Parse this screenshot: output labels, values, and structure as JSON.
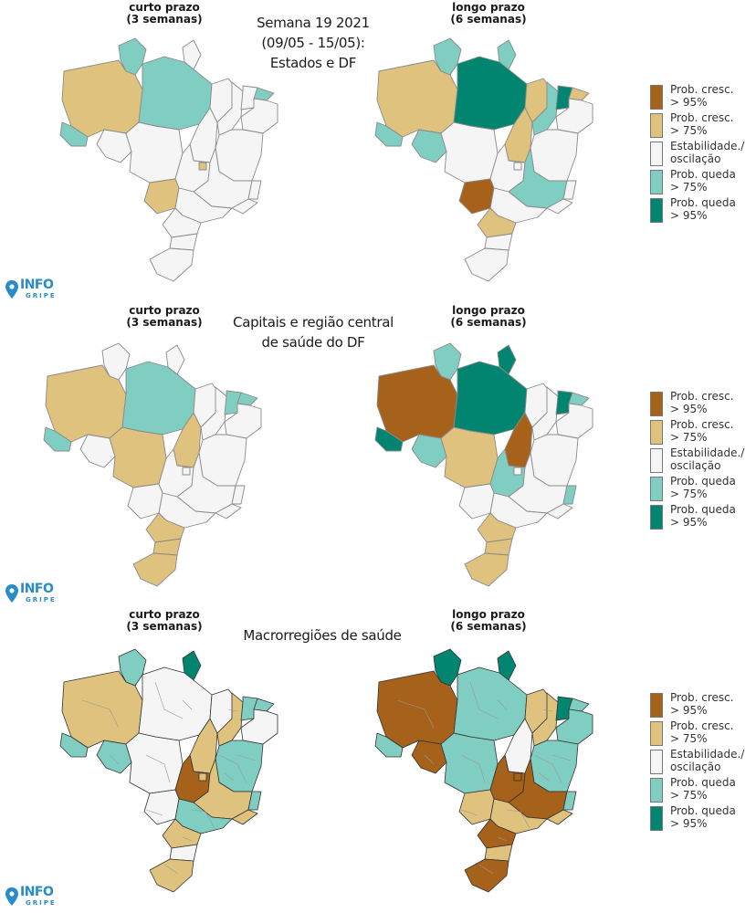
{
  "colors": {
    "cresc95": "#a6611a",
    "cresc75": "#dfc27d",
    "estavel": "#f5f5f5",
    "queda75": "#80cdc1",
    "queda95": "#018571",
    "border": "#8a8a8a",
    "logo": "#2a8bc9"
  },
  "title": {
    "line1": "Semana 19 2021",
    "line2": "(09/05 - 15/05):",
    "line3": "Estados e DF"
  },
  "subtitle2": {
    "line1": "Capitais e região central",
    "line2": "de saúde do DF"
  },
  "subtitle3": {
    "line1": "Macrorregiões de saúde"
  },
  "headers": {
    "short_1": "curto prazo",
    "short_2": "(3 semanas)",
    "long_1": "longo prazo",
    "long_2": "(6 semanas)"
  },
  "legend": [
    {
      "key": "cresc95",
      "line1": "Prob. cresc.",
      "line2": "> 95%"
    },
    {
      "key": "cresc75",
      "line1": "Prob. cresc.",
      "line2": "> 75%"
    },
    {
      "key": "estavel",
      "line1": "Estabilidade./",
      "line2": "oscilação"
    },
    {
      "key": "queda75",
      "line1": "Prob. queda",
      "line2": "> 75%"
    },
    {
      "key": "queda95",
      "line1": "Prob. queda",
      "line2": "> 95%"
    }
  ],
  "logo": {
    "line1": "INFO",
    "line2": "GRIPE"
  },
  "maps": {
    "estados_curto": {
      "RR": "queda75",
      "AP": "estavel",
      "AM": "cresc75",
      "PA": "queda75",
      "AC": "queda75",
      "RO": "estavel",
      "MT": "estavel",
      "TO": "estavel",
      "MA": "estavel",
      "PI": "estavel",
      "CE": "estavel",
      "RN": "queda75",
      "NE": "estavel",
      "BA": "estavel",
      "GO": "estavel",
      "DF": "cresc75",
      "MS": "cresc75",
      "MG": "estavel",
      "ES": "estavel",
      "RJ": "estavel",
      "SP": "estavel",
      "PR": "estavel",
      "SC": "estavel",
      "RS": "estavel"
    },
    "estados_longo": {
      "RR": "queda75",
      "AP": "queda75",
      "AM": "cresc75",
      "PA": "queda95",
      "AC": "queda75",
      "RO": "queda75",
      "MT": "estavel",
      "TO": "cresc75",
      "MA": "cresc75",
      "PI": "queda75",
      "CE": "queda95",
      "RN": "cresc75",
      "NE": "estavel",
      "BA": "estavel",
      "GO": "estavel",
      "DF": "estavel",
      "MS": "cresc95",
      "MG": "queda75",
      "ES": "estavel",
      "RJ": "estavel",
      "SP": "estavel",
      "PR": "cresc75",
      "SC": "estavel",
      "RS": "estavel"
    },
    "capitais_curto": {
      "RR": "estavel",
      "AP": "estavel",
      "AM": "cresc75",
      "PA": "queda75",
      "AC": "queda75",
      "RO": "estavel",
      "MT": "cresc75",
      "TO": "cresc75",
      "MA": "estavel",
      "PI": "estavel",
      "CE": "queda75",
      "RN": "queda75",
      "NE": "estavel",
      "BA": "estavel",
      "GO": "estavel",
      "DF": "estavel",
      "MS": "estavel",
      "MG": "estavel",
      "ES": "estavel",
      "RJ": "estavel",
      "SP": "estavel",
      "PR": "cresc75",
      "SC": "cresc75",
      "RS": "cresc75"
    },
    "capitais_longo": {
      "RR": "queda75",
      "AP": "queda95",
      "AM": "cresc95",
      "PA": "queda95",
      "AC": "queda95",
      "RO": "queda75",
      "MT": "cresc75",
      "TO": "cresc95",
      "MA": "estavel",
      "PI": "estavel",
      "CE": "queda95",
      "RN": "queda75",
      "NE": "estavel",
      "BA": "estavel",
      "GO": "queda75",
      "DF": "estavel",
      "MS": "estavel",
      "MG": "estavel",
      "ES": "queda75",
      "RJ": "estavel",
      "SP": "estavel",
      "PR": "cresc75",
      "SC": "cresc75",
      "RS": "cresc75"
    },
    "macro_curto": {
      "RR": "queda75",
      "AP": "queda95",
      "AM": "cresc75",
      "PA": "estavel",
      "AC": "queda75",
      "RO": "queda75",
      "MT": "estavel",
      "TO": "cresc75",
      "MA": "estavel",
      "PI": "cresc75",
      "CE": "queda75",
      "RN": "queda75",
      "NE": "estavel",
      "BA": "queda75",
      "GO": "cresc95",
      "DF": "cresc75",
      "MS": "estavel",
      "MG": "cresc75",
      "ES": "queda75",
      "RJ": "cresc75",
      "SP": "queda75",
      "PR": "cresc75",
      "SC": "estavel",
      "RS": "cresc75"
    },
    "macro_longo": {
      "RR": "queda95",
      "AP": "queda95",
      "AM": "cresc95",
      "PA": "queda75",
      "AC": "queda75",
      "RO": "cresc95",
      "MT": "queda75",
      "TO": "estavel",
      "MA": "cresc75",
      "PI": "cresc75",
      "CE": "queda95",
      "RN": "queda75",
      "NE": "queda75",
      "BA": "queda75",
      "GO": "cresc95",
      "DF": "cresc95",
      "MS": "cresc75",
      "MG": "cresc95",
      "ES": "queda75",
      "RJ": "cresc75",
      "SP": "cresc75",
      "PR": "cresc95",
      "SC": "cresc75",
      "RS": "cresc95"
    }
  }
}
